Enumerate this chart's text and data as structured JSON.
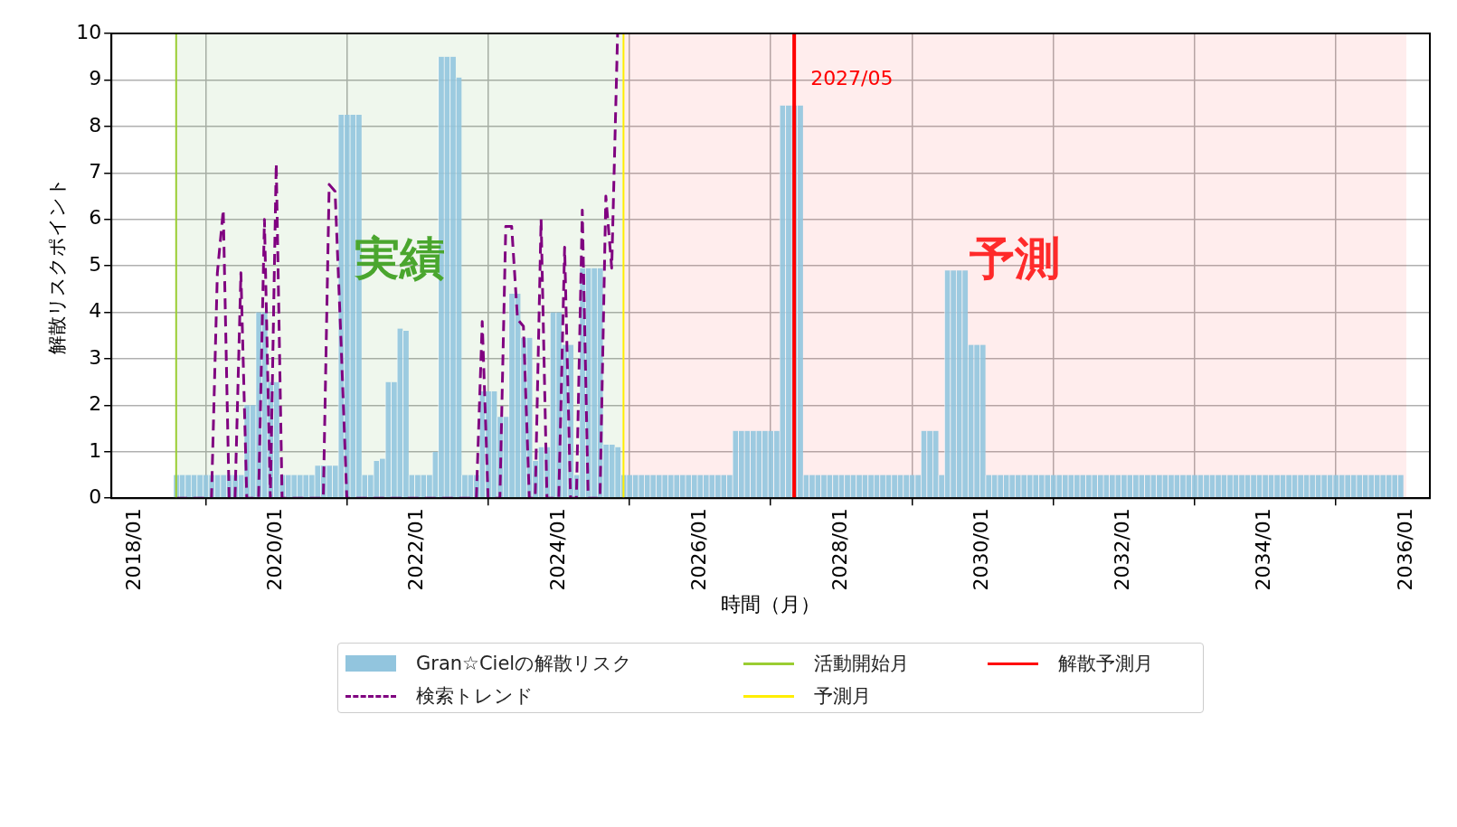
{
  "chart_data": {
    "type": "bar",
    "xlabel": "時間（月）",
    "ylabel": "解散リスクポイント",
    "xlim": [
      "2017-09",
      "2036-05"
    ],
    "ylim": [
      0,
      10
    ],
    "xticks": [
      {
        "value": "2018-01",
        "label": "2018/01"
      },
      {
        "value": "2020-01",
        "label": "2020/01"
      },
      {
        "value": "2022-01",
        "label": "2022/01"
      },
      {
        "value": "2024-01",
        "label": "2024/01"
      },
      {
        "value": "2026-01",
        "label": "2026/01"
      },
      {
        "value": "2028-01",
        "label": "2028/01"
      },
      {
        "value": "2030-01",
        "label": "2030/01"
      },
      {
        "value": "2032-01",
        "label": "2032/01"
      },
      {
        "value": "2034-01",
        "label": "2034/01"
      },
      {
        "value": "2036-01",
        "label": "2036/01"
      }
    ],
    "yticks": [
      0,
      1,
      2,
      3,
      4,
      5,
      6,
      7,
      8,
      9,
      10
    ],
    "grid": true,
    "legend": "bottom",
    "marker": "none",
    "series": [
      {
        "name": "Gran☆Cielの解散リスク",
        "color": "#92c5de",
        "x": [
          "2018-08",
          "2018-09",
          "2018-10",
          "2018-11",
          "2018-12",
          "2019-01",
          "2019-02",
          "2019-03",
          "2019-04",
          "2019-05",
          "2019-06",
          "2019-07",
          "2019-08",
          "2019-09",
          "2019-10",
          "2019-11",
          "2019-12",
          "2020-01",
          "2020-02",
          "2020-03",
          "2020-04",
          "2020-05",
          "2020-06",
          "2020-07",
          "2020-08",
          "2020-09",
          "2020-10",
          "2020-11",
          "2020-12",
          "2021-01",
          "2021-02",
          "2021-03",
          "2021-04",
          "2021-05",
          "2021-06",
          "2021-07",
          "2021-08",
          "2021-09",
          "2021-10",
          "2021-11",
          "2021-12",
          "2022-01",
          "2022-02",
          "2022-03",
          "2022-04",
          "2022-05",
          "2022-06",
          "2022-07",
          "2022-08",
          "2022-09",
          "2022-10",
          "2022-11",
          "2022-12",
          "2023-01",
          "2023-02",
          "2023-03",
          "2023-04",
          "2023-05",
          "2023-06",
          "2023-07",
          "2023-08",
          "2023-09",
          "2023-10",
          "2023-11",
          "2023-12",
          "2024-01",
          "2024-02",
          "2024-03",
          "2024-04",
          "2024-05",
          "2024-06",
          "2024-07",
          "2024-08",
          "2024-09",
          "2024-10",
          "2024-11",
          "2024-12",
          "2025-01",
          "2025-02",
          "2025-03",
          "2025-04",
          "2025-05",
          "2025-06",
          "2025-07",
          "2025-08",
          "2025-09",
          "2025-10",
          "2025-11",
          "2025-12",
          "2026-01",
          "2026-02",
          "2026-03",
          "2026-04",
          "2026-05",
          "2026-06",
          "2026-07",
          "2026-08",
          "2026-09",
          "2026-10",
          "2026-11",
          "2026-12",
          "2027-01",
          "2027-02",
          "2027-03",
          "2027-04",
          "2027-05",
          "2027-06",
          "2027-07",
          "2027-08",
          "2027-09",
          "2027-10",
          "2027-11",
          "2027-12",
          "2028-01",
          "2028-02",
          "2028-03",
          "2028-04",
          "2028-05",
          "2028-06",
          "2028-07",
          "2028-08",
          "2028-09",
          "2028-10",
          "2028-11",
          "2028-12",
          "2029-01",
          "2029-02",
          "2029-03",
          "2029-04",
          "2029-05",
          "2029-06",
          "2029-07",
          "2029-08",
          "2029-09",
          "2029-10",
          "2029-11",
          "2029-12",
          "2030-01",
          "2030-02",
          "2030-03",
          "2030-04",
          "2030-05",
          "2030-06",
          "2030-07",
          "2030-08",
          "2030-09",
          "2030-10",
          "2030-11",
          "2030-12",
          "2031-01",
          "2031-02",
          "2031-03",
          "2031-04",
          "2031-05",
          "2031-06",
          "2031-07",
          "2031-08",
          "2031-09",
          "2031-10",
          "2031-11",
          "2031-12",
          "2032-01",
          "2032-02",
          "2032-03",
          "2032-04",
          "2032-05",
          "2032-06",
          "2032-07",
          "2032-08",
          "2032-09",
          "2032-10",
          "2032-11",
          "2032-12",
          "2033-01",
          "2033-02",
          "2033-03",
          "2033-04",
          "2033-05",
          "2033-06",
          "2033-07",
          "2033-08",
          "2033-09",
          "2033-10",
          "2033-11",
          "2033-12",
          "2034-01",
          "2034-02",
          "2034-03",
          "2034-04",
          "2034-05",
          "2034-06",
          "2034-07",
          "2034-08",
          "2034-09",
          "2034-10",
          "2034-11",
          "2034-12",
          "2035-01",
          "2035-02",
          "2035-03",
          "2035-04",
          "2035-05",
          "2035-06",
          "2035-07",
          "2035-08",
          "2035-09",
          "2035-10",
          "2035-11",
          "2035-12"
        ],
        "values": [
          0.5,
          0.5,
          0.5,
          0.5,
          0.5,
          0.5,
          0.5,
          0.5,
          0.5,
          0.5,
          0.5,
          0.5,
          2,
          2,
          4,
          4,
          2.5,
          2.5,
          0.5,
          0.5,
          0.5,
          0.5,
          0.5,
          0.5,
          0.7,
          0.7,
          0.7,
          0.7,
          8.25,
          8.25,
          8.25,
          8.25,
          0.5,
          0.5,
          0.8,
          0.85,
          2.5,
          2.5,
          3.65,
          3.6,
          0.5,
          0.5,
          0.5,
          0.5,
          1.0,
          9.5,
          9.5,
          9.5,
          9.05,
          0.5,
          0.5,
          0.5,
          2.3,
          2.3,
          2.3,
          1.75,
          1.75,
          4.4,
          4.4,
          3.45,
          3.45,
          0.8,
          1.1,
          1.1,
          4.0,
          4.0,
          3.3,
          3.3,
          0.5,
          4.95,
          4.95,
          4.95,
          4.95,
          1.15,
          1.15,
          1.1,
          0.5,
          0.5,
          0.5,
          0.5,
          0.5,
          0.5,
          0.5,
          0.5,
          0.5,
          0.5,
          0.5,
          0.5,
          0.5,
          0.5,
          0.5,
          0.5,
          0.5,
          0.5,
          0.5,
          1.45,
          1.45,
          1.45,
          1.45,
          1.45,
          1.45,
          1.45,
          1.45,
          8.45,
          8.45,
          8.45,
          8.45,
          0.5,
          0.5,
          0.5,
          0.5,
          0.5,
          0.5,
          0.5,
          0.5,
          0.5,
          0.5,
          0.5,
          0.5,
          0.5,
          0.5,
          0.5,
          0.5,
          0.5,
          0.5,
          0.5,
          0.5,
          1.45,
          1.45,
          1.45,
          0.5,
          4.9,
          4.9,
          4.9,
          4.9,
          3.3,
          3.3,
          3.3,
          0.5,
          0.5,
          0.5,
          0.5,
          0.5,
          0.5,
          0.5,
          0.5,
          0.5,
          0.5,
          0.5,
          0.5,
          0.5,
          0.5,
          0.5,
          0.5,
          0.5,
          0.5,
          0.5,
          0.5,
          0.5,
          0.5,
          0.5,
          0.5,
          0.5,
          0.5,
          0.5,
          0.5,
          0.5,
          0.5,
          0.5,
          0.5,
          0.5,
          0.5,
          0.5,
          0.5,
          0.5,
          0.5,
          0.5,
          0.5,
          0.5,
          0.5,
          0.5,
          0.5,
          0.5,
          0.5,
          0.5,
          0.5,
          0.5,
          0.5,
          0.5,
          0.5,
          0.5,
          0.5,
          0.5,
          0.5,
          0.5,
          0.5,
          0.5,
          0.5,
          0.5,
          0.5,
          0.5,
          0.5,
          0.5,
          0.5,
          0.5,
          0.5,
          0.5,
          0.5,
          0.5
        ]
      },
      {
        "name": "検索トレンド",
        "type": "line",
        "color": "#800080",
        "line_style": "dashed",
        "x": [
          "2018-08",
          "2019-02",
          "2019-03",
          "2019-04",
          "2019-05",
          "2019-06",
          "2019-07",
          "2019-08",
          "2019-10",
          "2019-11",
          "2019-12",
          "2020-01",
          "2020-02",
          "2020-09",
          "2020-10",
          "2020-11",
          "2020-12",
          "2021-01",
          "2022-11",
          "2022-12",
          "2023-01",
          "2023-03",
          "2023-04",
          "2023-05",
          "2023-06",
          "2023-07",
          "2023-08",
          "2023-09",
          "2023-10",
          "2023-11",
          "2024-01",
          "2024-02",
          "2024-03",
          "2024-04",
          "2024-05",
          "2024-06",
          "2024-08",
          "2024-09",
          "2024-10",
          "2024-11"
        ],
        "values": [
          0,
          0,
          4.85,
          6.2,
          0,
          0,
          4.85,
          0,
          0,
          6.0,
          0,
          7.2,
          0,
          0,
          6.75,
          6.6,
          3.4,
          0,
          0,
          3.8,
          0,
          0,
          5.85,
          5.85,
          3.85,
          3.7,
          0,
          0,
          6.0,
          0,
          0,
          5.4,
          0,
          0,
          6.2,
          0,
          0,
          6.5,
          4.95,
          10
        ]
      }
    ],
    "ref_lines": [
      {
        "axis": "x",
        "value": "2018-08",
        "label": "活動開始月",
        "color": "#9acd32"
      },
      {
        "axis": "x",
        "value": "2024-12",
        "label": "予測月",
        "color": "#ffee00"
      },
      {
        "axis": "x",
        "value": "2027-05",
        "label": "解散予測月",
        "color": "#ff0000"
      }
    ],
    "bands": [
      {
        "axis": "x",
        "from": "2018-08",
        "to": "2024-12",
        "label": "実績",
        "color": "#4aa62e"
      },
      {
        "axis": "x",
        "from": "2024-12",
        "to": "2036-01",
        "label": "予測",
        "color": "#ff2a2a"
      }
    ],
    "annotations": [
      {
        "text": "2027/05",
        "x": "2027-05",
        "y": 9
      }
    ]
  }
}
